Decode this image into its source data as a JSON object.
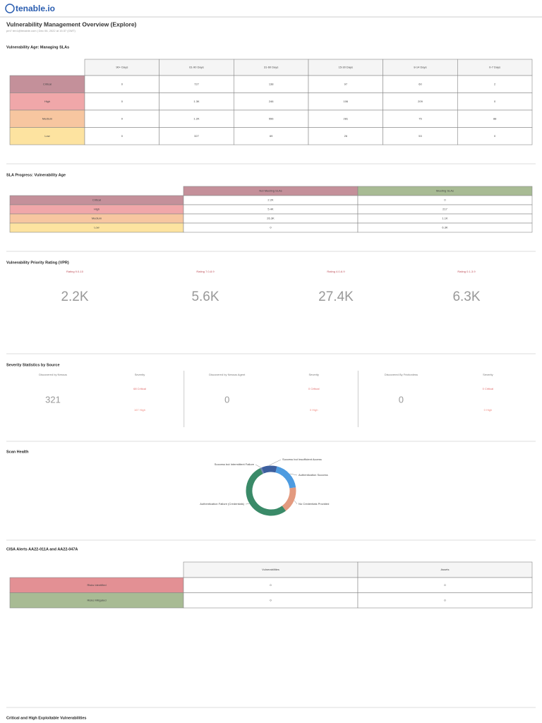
{
  "header": {
    "logo": "tenable.io",
    "title": "Vulnerability Management Overview (Explore)",
    "subtitle": "pm7 ten1@tenable.com | Dec 06, 2022 at 15:37 (GMT)"
  },
  "vulnerability_age": {
    "title": "Vulnerability Age: Managing SLAs",
    "columns": [
      "90+ Days",
      "61-90 Days",
      "31-60 Days",
      "15-30 Days",
      "8-14 Days",
      "0-7 Days"
    ],
    "rows": [
      {
        "label": "Critical",
        "color": "#c4909a",
        "cells": [
          0,
          727,
          138,
          97,
          60,
          2
        ]
      },
      {
        "label": "High",
        "color": "#f0a7a9",
        "cells": [
          0,
          "1.3K",
          246,
          106,
          209,
          0
        ]
      },
      {
        "label": "Medium",
        "color": "#f7c6a0",
        "cells": [
          0,
          "1.2K",
          556,
          281,
          75,
          88
        ]
      },
      {
        "label": "Low",
        "color": "#fde3a0",
        "cells": [
          0,
          327,
          69,
          26,
          53,
          0
        ]
      }
    ]
  },
  "sla_progress": {
    "title": "SLA Progress: Vulnerability Age",
    "columns": [
      {
        "label": "Not Meeting SLAs",
        "color": "#c4909a"
      },
      {
        "label": "Meeting SLAs",
        "color": "#a8bb94"
      }
    ],
    "rows": [
      {
        "label": "Critical",
        "color": "#c4909a",
        "cells": [
          "2.2K",
          0
        ]
      },
      {
        "label": "High",
        "color": "#f0a7a9",
        "cells": [
          "5.4K",
          217
        ]
      },
      {
        "label": "Medium",
        "color": "#f7c6a0",
        "cells": [
          "26.3K",
          "1.1K"
        ]
      },
      {
        "label": "Low",
        "color": "#fde3a0",
        "cells": [
          0,
          "6.3K"
        ]
      }
    ]
  },
  "vpr": {
    "title": "Vulnerability Priority Rating (VPR)",
    "items": [
      {
        "label": "Rating 9.0-10",
        "value": "2.2K"
      },
      {
        "label": "Rating 7.0-8.9",
        "value": "5.6K"
      },
      {
        "label": "Rating 4.0-6.9",
        "value": "27.4K"
      },
      {
        "label": "Rating 0.1-3.9",
        "value": "6.3K"
      }
    ]
  },
  "severity_by_source": {
    "title": "Severity Statistics by Source",
    "panels": [
      {
        "source": "Discovered by Nessus",
        "count": 321,
        "severity_title": "Severity",
        "critical": "68 Critical",
        "high": "167 High"
      },
      {
        "source": "Discovered by Nessus Agent",
        "count": 0,
        "severity_title": "Severity",
        "critical": "0 Critical",
        "high": "0 High"
      },
      {
        "source": "Discovered By Frictionless",
        "count": 0,
        "severity_title": "Severity",
        "critical": "0 Critical",
        "high": "0 High"
      }
    ]
  },
  "scan_health": {
    "title": "Scan Health",
    "type": "donut",
    "labels": [
      "Success but Insufficient Access",
      "Authentication Success",
      "No Credentials Provided",
      "Authentication Failure (Credentials)",
      "Success but Intermittent Failure"
    ],
    "values": [
      10,
      19,
      17,
      53,
      1
    ],
    "colors": [
      "#3d5f9e",
      "#4d9be0",
      "#e39a7f",
      "#3a8a68",
      "#6a7fb0"
    ]
  },
  "cisa_alerts": {
    "title": "CISA Alerts AA22-011A and AA22-047A",
    "columns": [
      "Vulnerabilities",
      "Assets"
    ],
    "rows": [
      {
        "label": "Risks Identified",
        "color": "#e39094",
        "cells": [
          0,
          0
        ]
      },
      {
        "label": "Risks Mitigated",
        "color": "#a8bb94",
        "cells": [
          0,
          0
        ]
      }
    ]
  },
  "next_section": {
    "title": "Critical and High Exploitable Vulnerabilities"
  }
}
